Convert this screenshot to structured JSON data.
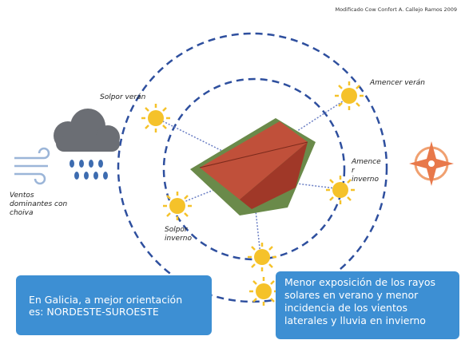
{
  "credit": "Modificado Cow Confort A. Callejo Ramos 2009",
  "labels": {
    "summer_sunset": "Solpor verán",
    "summer_sunrise": "Amencer verán",
    "winter_sunrise": [
      "Amence",
      "r",
      "inverno"
    ],
    "winter_sunset": [
      "Solpor",
      "inverno"
    ],
    "winds": [
      "Ventos",
      "dominantes con",
      "choiva"
    ]
  },
  "boxes": {
    "left": [
      "En Galicia, a mejor orientación",
      "es: NORDESTE-SUROESTE"
    ],
    "right": [
      "Menor exposición de los rayos",
      "solares en verano y menor",
      "incidencia de los vientos",
      "laterales y lluvia en invierno"
    ]
  }
}
